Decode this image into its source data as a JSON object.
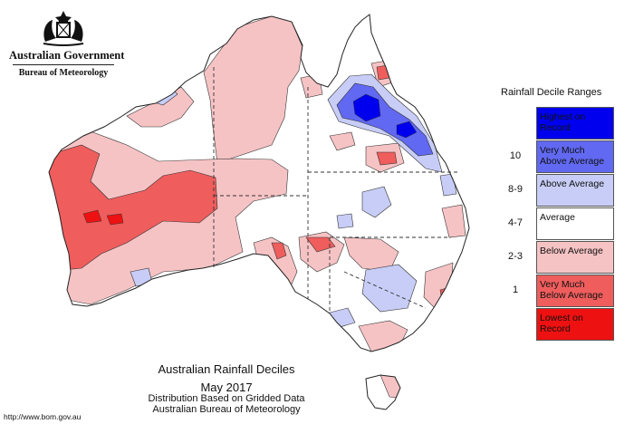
{
  "header": {
    "government": "Australian Government",
    "bureau": "Bureau of Meteorology"
  },
  "legend": {
    "title": "Rainfall Decile Ranges",
    "items": [
      {
        "key": "highest",
        "number": "",
        "label": "Highest on\nRecord",
        "color": "#0000ee"
      },
      {
        "key": "very-much-above",
        "number": "10",
        "label": "Very Much\nAbove Average",
        "color": "#6169f2"
      },
      {
        "key": "above",
        "number": "8-9",
        "label": "Above Average",
        "color": "#c7cdf6"
      },
      {
        "key": "average",
        "number": "4-7",
        "label": "Average",
        "color": "#ffffff"
      },
      {
        "key": "below",
        "number": "2-3",
        "label": "Below Average",
        "color": "#f6c3c5"
      },
      {
        "key": "very-much-below",
        "number": "1",
        "label": "Very Much\nBelow Average",
        "color": "#ef5d5d"
      },
      {
        "key": "lowest",
        "number": "",
        "label": "Lowest on\nRecord",
        "color": "#ee1111"
      }
    ]
  },
  "caption": {
    "title": "Australian Rainfall Deciles",
    "period": "May 2017",
    "method": "Distribution Based on Gridded Data",
    "source": "Australian Bureau of Meteorology"
  },
  "footer": {
    "url": "http://www.bom.gov.au"
  }
}
